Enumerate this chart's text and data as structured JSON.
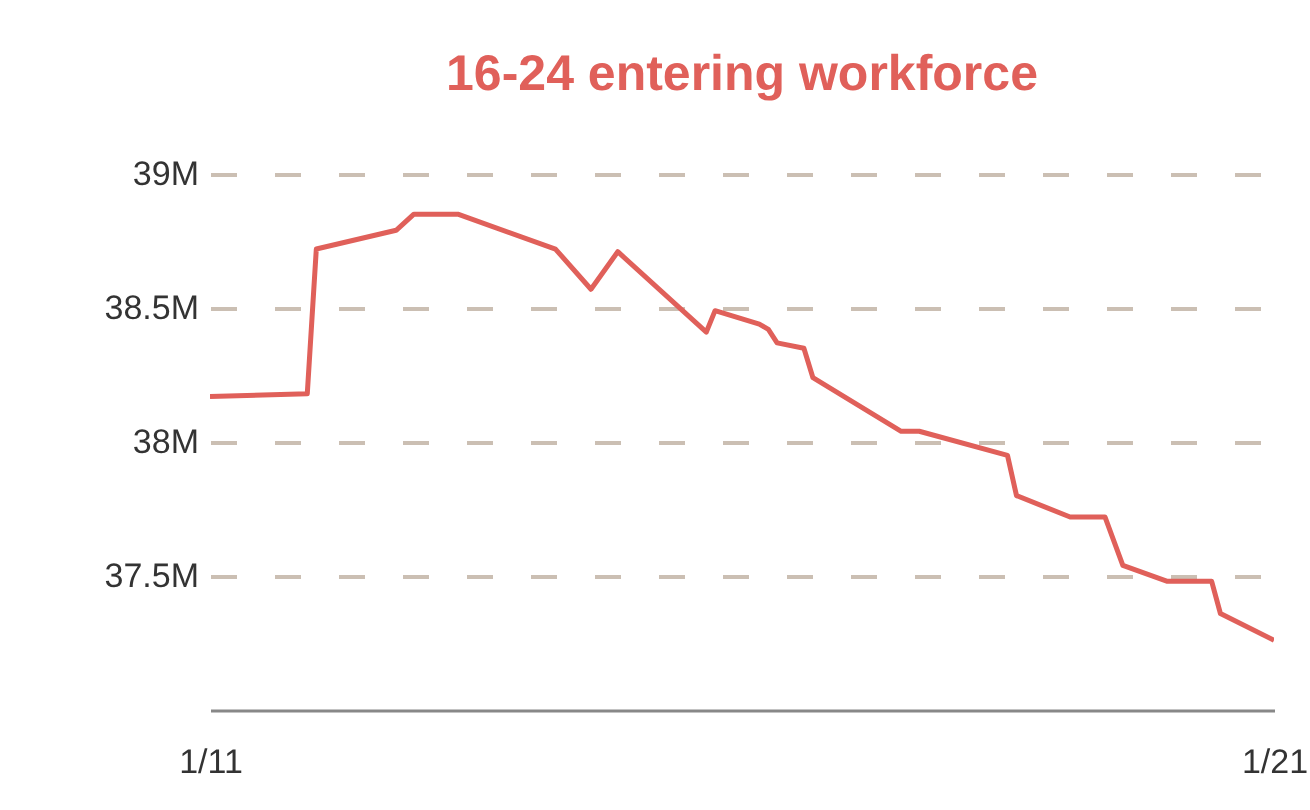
{
  "chart_data": {
    "type": "line",
    "title": "16-24 entering workforce",
    "x": [
      "2011-01",
      "2011-12",
      "2012-01",
      "2012-10",
      "2012-12",
      "2013-05",
      "2014-04",
      "2014-08",
      "2014-11",
      "2015-09",
      "2015-10",
      "2016-03",
      "2016-04",
      "2016-05",
      "2016-08",
      "2016-09",
      "2017-07",
      "2017-09",
      "2018-07",
      "2018-08",
      "2019-02",
      "2019-06",
      "2019-08",
      "2020-01",
      "2020-06",
      "2020-07",
      "2021-01"
    ],
    "series": [
      {
        "color": "#e0605a",
        "values": [
          38.17,
          38.18,
          38.72,
          38.79,
          38.85,
          38.85,
          38.72,
          38.57,
          38.71,
          38.41,
          38.49,
          38.44,
          38.42,
          38.37,
          38.35,
          38.24,
          38.04,
          38.04,
          37.95,
          37.8,
          37.72,
          37.72,
          37.54,
          37.48,
          37.48,
          37.36,
          37.26
        ]
      }
    ],
    "xlim": [
      "2011-01",
      "2021-01"
    ],
    "xticks": [
      {
        "value": "2011-01",
        "label": "1/11"
      },
      {
        "value": "2021-01",
        "label": "1/21"
      }
    ],
    "ylim": [
      37.0,
      39.0
    ],
    "yticks": [
      {
        "value": 37.5,
        "label": "37.5M"
      },
      {
        "value": 38,
        "label": "38M"
      },
      {
        "value": 38.5,
        "label": "38.5M"
      },
      {
        "value": 39,
        "label": "39M"
      }
    ],
    "grid": "y",
    "marker": "none",
    "line_style": "solid"
  }
}
